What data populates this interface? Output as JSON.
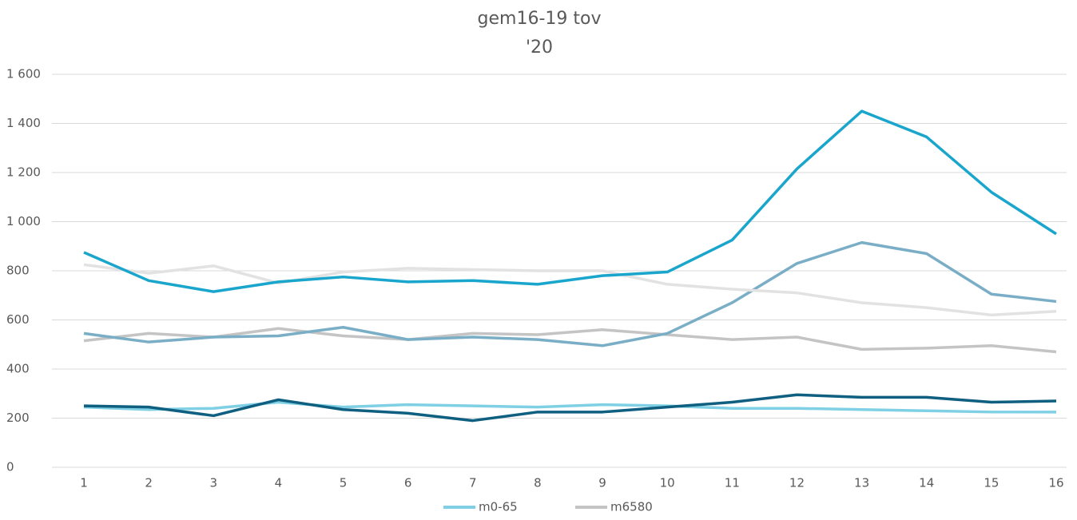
{
  "chart_data": {
    "type": "line",
    "title": "gem16-19 tov",
    "subtitle": "'20",
    "categories": [
      "1",
      "2",
      "3",
      "4",
      "5",
      "6",
      "7",
      "8",
      "9",
      "10",
      "11",
      "12",
      "13",
      "14",
      "15",
      "16"
    ],
    "series": [
      {
        "name": "m0-65",
        "color": "#7fd0e4",
        "values": [
          245,
          235,
          240,
          265,
          245,
          255,
          250,
          245,
          255,
          250,
          240,
          240,
          235,
          230,
          225,
          225
        ]
      },
      {
        "name": "m6580",
        "color": "#c4c4c4",
        "values": [
          515,
          545,
          530,
          565,
          535,
          520,
          545,
          540,
          560,
          540,
          520,
          530,
          480,
          485,
          495,
          470
        ]
      },
      {
        "color": "#0e5f80",
        "values": [
          250,
          245,
          210,
          275,
          235,
          220,
          190,
          225,
          225,
          245,
          265,
          295,
          285,
          285,
          265,
          270
        ]
      },
      {
        "color": "#7aaec6",
        "values": [
          545,
          510,
          530,
          535,
          570,
          520,
          530,
          520,
          495,
          545,
          670,
          830,
          915,
          870,
          705,
          675
        ]
      },
      {
        "color": "#e2e2e2",
        "values": [
          825,
          790,
          820,
          750,
          795,
          810,
          805,
          800,
          800,
          745,
          725,
          710,
          670,
          650,
          620,
          635
        ]
      },
      {
        "color": "#1aa6cc",
        "values": [
          875,
          760,
          715,
          755,
          775,
          755,
          760,
          745,
          780,
          795,
          925,
          1215,
          1450,
          1345,
          1120,
          950
        ]
      }
    ],
    "ylim": [
      0,
      1600
    ],
    "yticks": [
      0,
      200,
      400,
      600,
      800,
      {
        "value": 1000,
        "label": "1 000"
      },
      {
        "value": 1200,
        "label": "1 200"
      },
      {
        "value": 1400,
        "label": "1 400"
      },
      {
        "value": 1600,
        "label": "1 600"
      }
    ],
    "grid": true,
    "legend": "bottom"
  }
}
